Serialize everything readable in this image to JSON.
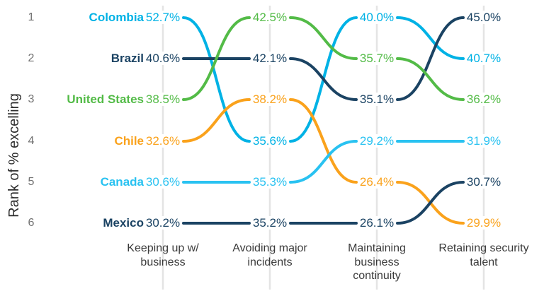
{
  "chart_data": {
    "type": "bump",
    "title": "",
    "ylabel": "Rank of % excelling",
    "xlabel": "",
    "rank_ticks": [
      "1",
      "2",
      "3",
      "4",
      "5",
      "6"
    ],
    "categories": [
      "Keeping up w/\nbusiness",
      "Avoiding major\nincidents",
      "Maintaining\nbusiness\ncontinuity",
      "Retaining security\ntalent"
    ],
    "grid": true,
    "legend_position": "inline-left-country-labels",
    "series": [
      {
        "name": "Colombia",
        "color": "#00B2E5",
        "ranks": [
          1,
          4,
          1,
          2
        ],
        "values": [
          "52.7%",
          "35.6%",
          "40.0%",
          "40.7%"
        ]
      },
      {
        "name": "Brazil",
        "color": "#1B4363",
        "ranks": [
          2,
          2,
          3,
          1
        ],
        "values": [
          "40.6%",
          "42.1%",
          "35.1%",
          "45.0%"
        ]
      },
      {
        "name": "United States",
        "color": "#53BB47",
        "ranks": [
          3,
          1,
          2,
          3
        ],
        "values": [
          "38.5%",
          "42.5%",
          "35.7%",
          "36.2%"
        ]
      },
      {
        "name": "Chile",
        "color": "#FAA21C",
        "ranks": [
          4,
          3,
          5,
          6
        ],
        "values": [
          "32.6%",
          "38.2%",
          "26.4%",
          "29.9%"
        ]
      },
      {
        "name": "Canada",
        "color": "#29C2F1",
        "ranks": [
          5,
          5,
          4,
          4
        ],
        "values": [
          "30.6%",
          "35.3%",
          "29.2%",
          "31.9%"
        ]
      },
      {
        "name": "Mexico",
        "color": "#1B4363",
        "ranks": [
          6,
          6,
          6,
          5
        ],
        "values": [
          "30.2%",
          "35.2%",
          "26.1%",
          "30.7%"
        ]
      }
    ],
    "style_colors": {
      "gridline": "#E4E4E4",
      "rank_tick": "#707070",
      "category_label": "#3A3A3A",
      "axis_title": "#2E2E2E"
    }
  }
}
